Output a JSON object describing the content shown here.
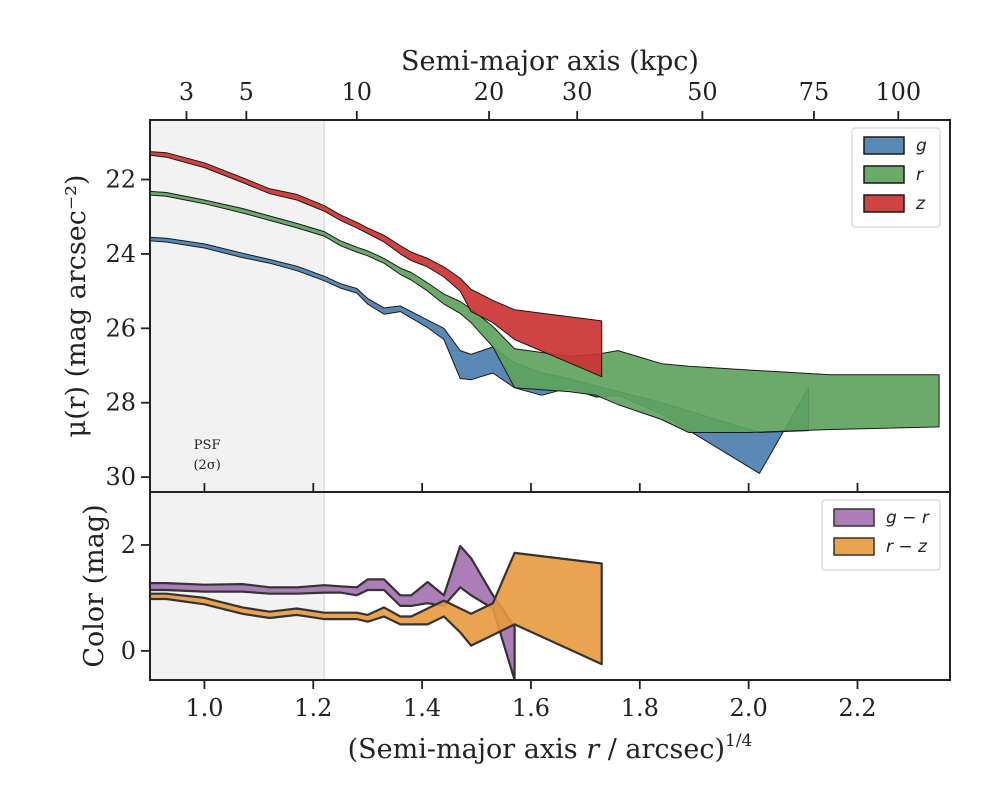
{
  "chart_data": [
    {
      "type": "area",
      "panel": "surface-brightness",
      "xlabel_main": "(Semi-major axis ",
      "xlabel_var": "r",
      "xlabel_tail": " / arcsec)",
      "xlabel_sup": "1/4",
      "xlim": [
        0.9,
        2.37
      ],
      "ylabel": "μ(r) (mag arcsec⁻²)",
      "ylim": [
        30.4,
        20.4
      ],
      "yticks": [
        22,
        24,
        26,
        28,
        30
      ],
      "top_axis": {
        "label": "Semi-major axis (kpc)",
        "ticks": [
          {
            "label": "3",
            "x": 0.967
          },
          {
            "label": "5",
            "x": 1.077
          },
          {
            "label": "10",
            "x": 1.28
          },
          {
            "label": "20",
            "x": 1.523
          },
          {
            "label": "30",
            "x": 1.685
          },
          {
            "label": "50",
            "x": 1.915
          },
          {
            "label": "75",
            "x": 2.12
          },
          {
            "label": "100",
            "x": 2.275
          }
        ]
      },
      "shaded_region": {
        "label_line1": "PSF",
        "label_line2": "(2σ)",
        "x_max": 1.22
      },
      "legend": {
        "placement": "upper right"
      },
      "series": [
        {
          "name": "g",
          "color": "#4c7fb0",
          "x": [
            0.9,
            0.93,
            1.0,
            1.07,
            1.12,
            1.17,
            1.22,
            1.25,
            1.28,
            1.3,
            1.33,
            1.36,
            1.38,
            1.41,
            1.44,
            1.47,
            1.49,
            1.53,
            1.57,
            1.62,
            1.67,
            1.72,
            1.76,
            1.84,
            2.02,
            2.11
          ],
          "y_lo": [
            23.55,
            23.58,
            23.73,
            23.98,
            24.15,
            24.33,
            24.6,
            24.8,
            24.93,
            25.2,
            25.45,
            25.4,
            25.55,
            25.78,
            26.0,
            26.6,
            26.7,
            26.5,
            26.92,
            27.2,
            27.35,
            27.55,
            27.7,
            28.0,
            28.8,
            28.75
          ],
          "y_hi": [
            23.65,
            23.68,
            23.84,
            24.1,
            24.25,
            24.45,
            24.72,
            24.92,
            25.05,
            25.35,
            25.62,
            25.55,
            25.72,
            25.98,
            26.3,
            27.35,
            27.38,
            27.2,
            27.6,
            27.8,
            27.6,
            27.85,
            27.8,
            28.3,
            29.9,
            27.6
          ]
        },
        {
          "name": "r",
          "color": "#5ea35e",
          "x": [
            0.9,
            0.93,
            1.0,
            1.07,
            1.12,
            1.17,
            1.22,
            1.25,
            1.28,
            1.3,
            1.33,
            1.36,
            1.38,
            1.41,
            1.44,
            1.47,
            1.49,
            1.53,
            1.57,
            1.62,
            1.67,
            1.72,
            1.76,
            1.84,
            1.89,
            2.0,
            2.15,
            2.35
          ],
          "y_lo": [
            22.32,
            22.35,
            22.55,
            22.78,
            22.98,
            23.18,
            23.4,
            23.65,
            23.82,
            23.92,
            24.12,
            24.38,
            24.5,
            24.78,
            25.08,
            25.28,
            25.48,
            25.95,
            26.55,
            26.65,
            26.75,
            26.7,
            26.6,
            26.95,
            27.02,
            27.12,
            27.25,
            27.25
          ],
          "y_hi": [
            22.42,
            22.45,
            22.65,
            22.9,
            23.1,
            23.3,
            23.52,
            23.78,
            23.95,
            24.05,
            24.25,
            24.55,
            24.7,
            25.0,
            25.35,
            25.6,
            25.85,
            26.5,
            27.6,
            27.65,
            27.7,
            27.8,
            28.05,
            28.45,
            28.8,
            28.8,
            28.72,
            28.65
          ]
        },
        {
          "name": "z",
          "color": "#cc3333",
          "x": [
            0.9,
            0.93,
            1.0,
            1.07,
            1.12,
            1.17,
            1.22,
            1.25,
            1.28,
            1.3,
            1.33,
            1.36,
            1.38,
            1.41,
            1.44,
            1.47,
            1.49,
            1.53,
            1.57,
            1.73
          ],
          "y_lo": [
            21.25,
            21.28,
            21.55,
            21.95,
            22.25,
            22.4,
            22.7,
            22.95,
            23.15,
            23.3,
            23.5,
            23.78,
            23.95,
            24.12,
            24.35,
            24.65,
            24.95,
            25.25,
            25.5,
            25.8
          ],
          "y_hi": [
            21.35,
            21.4,
            21.68,
            22.08,
            22.38,
            22.55,
            22.85,
            23.1,
            23.3,
            23.45,
            23.68,
            24.0,
            24.18,
            24.35,
            24.62,
            25.0,
            25.55,
            25.85,
            26.3,
            27.3
          ]
        }
      ]
    },
    {
      "type": "area",
      "panel": "color",
      "ylabel": "Color (mag)",
      "xlim": [
        0.9,
        2.37
      ],
      "ylim": [
        -0.55,
        3.0
      ],
      "yticks": [
        0,
        2
      ],
      "xticks": [
        1.0,
        1.2,
        1.4,
        1.6,
        1.8,
        2.0,
        2.2
      ],
      "xtick_labels": [
        "1.0",
        "1.2",
        "1.4",
        "1.6",
        "1.8",
        "2.0",
        "2.2"
      ],
      "legend": {
        "placement": "upper right"
      },
      "series": [
        {
          "name": "g − r",
          "color": "#a46fb0",
          "x": [
            0.9,
            0.93,
            1.0,
            1.07,
            1.12,
            1.17,
            1.22,
            1.25,
            1.28,
            1.3,
            1.33,
            1.36,
            1.38,
            1.41,
            1.44,
            1.47,
            1.49,
            1.53,
            1.57
          ],
          "y_lo": [
            1.15,
            1.15,
            1.12,
            1.12,
            1.08,
            1.08,
            1.1,
            1.1,
            1.05,
            1.15,
            1.15,
            0.85,
            0.85,
            0.9,
            0.85,
            1.2,
            1.05,
            0.8,
            -0.55
          ],
          "y_hi": [
            1.28,
            1.28,
            1.25,
            1.26,
            1.2,
            1.2,
            1.24,
            1.22,
            1.2,
            1.35,
            1.35,
            1.05,
            1.05,
            1.3,
            1.05,
            1.98,
            1.75,
            1.05,
            0.45
          ]
        },
        {
          "name": "r − z",
          "color": "#e8993d",
          "x": [
            0.9,
            0.93,
            1.0,
            1.07,
            1.12,
            1.17,
            1.22,
            1.25,
            1.28,
            1.3,
            1.33,
            1.36,
            1.38,
            1.41,
            1.44,
            1.47,
            1.49,
            1.53,
            1.57,
            1.73
          ],
          "y_lo": [
            0.98,
            0.98,
            0.88,
            0.7,
            0.62,
            0.68,
            0.6,
            0.6,
            0.6,
            0.55,
            0.65,
            0.5,
            0.5,
            0.5,
            0.65,
            0.35,
            0.1,
            0.3,
            0.5,
            -0.25
          ],
          "y_hi": [
            1.08,
            1.08,
            1.0,
            0.82,
            0.74,
            0.8,
            0.72,
            0.72,
            0.72,
            0.68,
            0.82,
            0.65,
            0.65,
            0.8,
            0.95,
            0.8,
            0.7,
            0.9,
            1.85,
            1.65
          ]
        }
      ]
    }
  ]
}
